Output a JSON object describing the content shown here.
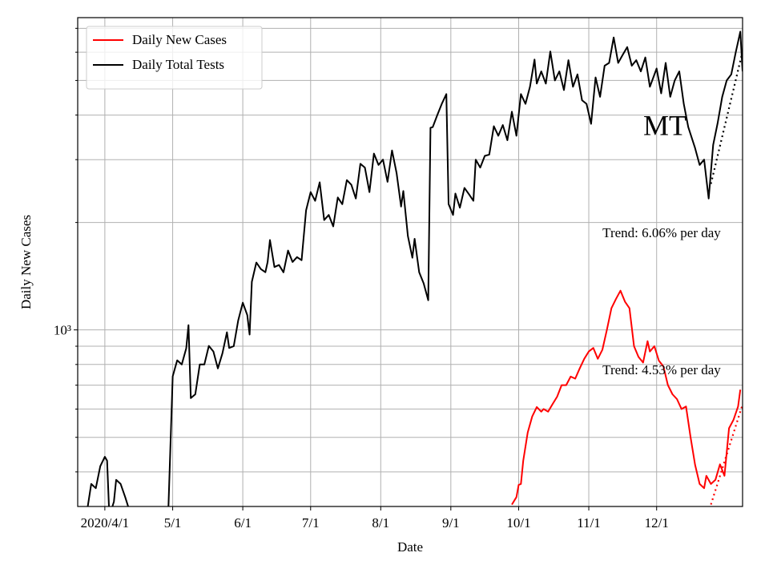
{
  "chart_data": {
    "type": "line",
    "annotation": "MT",
    "xlabel": "Date",
    "ylabel": "Daily New Cases",
    "log_y": true,
    "grid": true,
    "legend": "upper left",
    "xlim": [
      "2020-03-20",
      "2021-01-08"
    ],
    "ylim": [
      320,
      7500
    ],
    "xticks": [
      {
        "value": "2020-04-01",
        "label": "2020/4/1"
      },
      {
        "value": "2020-05-01",
        "label": "5/1"
      },
      {
        "value": "2020-06-01",
        "label": "6/1"
      },
      {
        "value": "2020-07-01",
        "label": "7/1"
      },
      {
        "value": "2020-08-01",
        "label": "8/1"
      },
      {
        "value": "2020-09-01",
        "label": "9/1"
      },
      {
        "value": "2020-10-01",
        "label": "10/1"
      },
      {
        "value": "2020-11-01",
        "label": "11/1"
      },
      {
        "value": "2020-12-01",
        "label": "12/1"
      }
    ],
    "yticks": [
      {
        "value": 1000,
        "label": "10³"
      }
    ],
    "yminorticks": [
      400,
      500,
      600,
      700,
      800,
      900,
      2000,
      3000,
      4000,
      5000,
      6000,
      7000
    ],
    "series": [
      {
        "name": "Daily New Cases",
        "color": "#ff0000",
        "x": [
          "2020-09-28",
          "2020-09-30",
          "2020-10-01",
          "2020-10-02",
          "2020-10-03",
          "2020-10-05",
          "2020-10-07",
          "2020-10-09",
          "2020-10-11",
          "2020-10-12",
          "2020-10-14",
          "2020-10-16",
          "2020-10-18",
          "2020-10-20",
          "2020-10-22",
          "2020-10-24",
          "2020-10-26",
          "2020-10-28",
          "2020-10-30",
          "2020-11-01",
          "2020-11-03",
          "2020-11-05",
          "2020-11-07",
          "2020-11-09",
          "2020-11-11",
          "2020-11-13",
          "2020-11-15",
          "2020-11-17",
          "2020-11-19",
          "2020-11-21",
          "2020-11-23",
          "2020-11-25",
          "2020-11-27",
          "2020-11-28",
          "2020-11-30",
          "2020-12-02",
          "2020-12-04",
          "2020-12-06",
          "2020-12-08",
          "2020-12-10",
          "2020-12-12",
          "2020-12-14",
          "2020-12-16",
          "2020-12-18",
          "2020-12-20",
          "2020-12-22",
          "2020-12-23",
          "2020-12-25",
          "2020-12-27",
          "2020-12-29",
          "2020-12-31",
          "2021-01-02",
          "2021-01-04",
          "2021-01-06",
          "2021-01-07"
        ],
        "values": [
          324,
          340,
          368,
          370,
          430,
          516,
          572,
          608,
          590,
          600,
          590,
          620,
          650,
          700,
          700,
          740,
          730,
          780,
          830,
          870,
          890,
          830,
          880,
          1000,
          1150,
          1220,
          1288,
          1200,
          1150,
          900,
          840,
          810,
          930,
          870,
          900,
          820,
          790,
          700,
          660,
          640,
          600,
          610,
          500,
          419,
          370,
          360,
          390,
          370,
          380,
          420,
          390,
          530,
          560,
          610,
          680
        ]
      },
      {
        "name": "Daily Total Tests",
        "color": "#000000",
        "x": [
          "2020-03-24",
          "2020-03-26",
          "2020-03-28",
          "2020-03-30",
          "2020-04-01",
          "2020-04-02",
          "2020-04-03",
          "2020-04-05",
          "2020-04-06",
          "2020-04-08",
          "2020-04-10",
          "2020-04-12",
          "2020-04-14",
          "2020-04-27",
          "2020-04-29",
          "2020-05-01",
          "2020-05-03",
          "2020-05-05",
          "2020-05-07",
          "2020-05-08",
          "2020-05-09",
          "2020-05-11",
          "2020-05-13",
          "2020-05-15",
          "2020-05-17",
          "2020-05-19",
          "2020-05-21",
          "2020-05-23",
          "2020-05-25",
          "2020-05-26",
          "2020-05-28",
          "2020-05-30",
          "2020-06-01",
          "2020-06-03",
          "2020-06-04",
          "2020-06-05",
          "2020-06-07",
          "2020-06-09",
          "2020-06-11",
          "2020-06-12",
          "2020-06-13",
          "2020-06-15",
          "2020-06-17",
          "2020-06-19",
          "2020-06-21",
          "2020-06-23",
          "2020-06-25",
          "2020-06-27",
          "2020-06-29",
          "2020-07-01",
          "2020-07-03",
          "2020-07-05",
          "2020-07-07",
          "2020-07-09",
          "2020-07-11",
          "2020-07-13",
          "2020-07-15",
          "2020-07-17",
          "2020-07-19",
          "2020-07-21",
          "2020-07-23",
          "2020-07-25",
          "2020-07-27",
          "2020-07-29",
          "2020-07-31",
          "2020-08-02",
          "2020-08-04",
          "2020-08-06",
          "2020-08-08",
          "2020-08-10",
          "2020-08-11",
          "2020-08-13",
          "2020-08-15",
          "2020-08-16",
          "2020-08-18",
          "2020-08-20",
          "2020-08-22",
          "2020-08-23",
          "2020-08-24",
          "2020-08-26",
          "2020-08-28",
          "2020-08-30",
          "2020-08-31",
          "2020-09-02",
          "2020-09-03",
          "2020-09-05",
          "2020-09-07",
          "2020-09-09",
          "2020-09-11",
          "2020-09-12",
          "2020-09-14",
          "2020-09-16",
          "2020-09-18",
          "2020-09-20",
          "2020-09-22",
          "2020-09-24",
          "2020-09-26",
          "2020-09-28",
          "2020-09-30",
          "2020-10-02",
          "2020-10-04",
          "2020-10-06",
          "2020-10-08",
          "2020-10-09",
          "2020-10-11",
          "2020-10-13",
          "2020-10-15",
          "2020-10-17",
          "2020-10-19",
          "2020-10-21",
          "2020-10-23",
          "2020-10-25",
          "2020-10-27",
          "2020-10-29",
          "2020-10-31",
          "2020-11-02",
          "2020-11-04",
          "2020-11-06",
          "2020-11-08",
          "2020-11-10",
          "2020-11-12",
          "2020-11-14",
          "2020-11-16",
          "2020-11-18",
          "2020-11-20",
          "2020-11-22",
          "2020-11-24",
          "2020-11-26",
          "2020-11-28",
          "2020-12-01",
          "2020-12-03",
          "2020-12-05",
          "2020-12-07",
          "2020-12-09",
          "2020-12-11",
          "2020-12-13",
          "2020-12-15",
          "2020-12-18",
          "2020-12-20",
          "2020-12-22",
          "2020-12-24",
          "2020-12-26",
          "2020-12-28",
          "2020-12-30",
          "2021-01-01",
          "2021-01-03",
          "2021-01-05",
          "2021-01-07",
          "2021-01-08"
        ],
        "values": [
          307,
          370,
          360,
          415,
          441,
          430,
          300,
          330,
          380,
          370,
          340,
          310,
          280,
          280,
          300,
          741,
          822,
          800,
          888,
          1031,
          644,
          660,
          800,
          800,
          902,
          870,
          780,
          860,
          985,
          890,
          900,
          1064,
          1192,
          1100,
          970,
          1364,
          1544,
          1480,
          1451,
          1550,
          1786,
          1500,
          1520,
          1450,
          1669,
          1550,
          1600,
          1568,
          2162,
          2433,
          2300,
          2591,
          2031,
          2100,
          1950,
          2350,
          2250,
          2630,
          2550,
          2335,
          2920,
          2850,
          2433,
          3120,
          2900,
          3000,
          2600,
          3183,
          2750,
          2217,
          2450,
          1832,
          1593,
          1800,
          1450,
          1350,
          1211,
          3683,
          3700,
          4000,
          4300,
          4580,
          2253,
          2100,
          2410,
          2200,
          2500,
          2400,
          2300,
          3000,
          2850,
          3074,
          3100,
          3722,
          3500,
          3750,
          3400,
          4086,
          3500,
          4580,
          4300,
          4800,
          5722,
          4900,
          5300,
          4900,
          6030,
          5000,
          5300,
          4700,
          5700,
          4800,
          5200,
          4400,
          4300,
          3780,
          5100,
          4500,
          5500,
          5600,
          6600,
          5600,
          5900,
          6200,
          5500,
          5700,
          5300,
          5800,
          4800,
          5400,
          4600,
          5600,
          4500,
          5000,
          5300,
          4300,
          3700,
          3234,
          2900,
          3000,
          2335,
          3300,
          3800,
          4500,
          5000,
          5200,
          6000,
          6850,
          5300
        ]
      }
    ],
    "trends": [
      {
        "label": "Trend: 6.06% per day",
        "color": "#000000",
        "x": [
          "2020-12-25",
          "2021-01-08"
        ],
        "values": [
          2566,
          6030
        ]
      },
      {
        "label": "Trend: 4.53% per day",
        "color": "#ff0000",
        "x": [
          "2020-12-25",
          "2021-01-08"
        ],
        "values": [
          324,
          618
        ]
      }
    ]
  }
}
